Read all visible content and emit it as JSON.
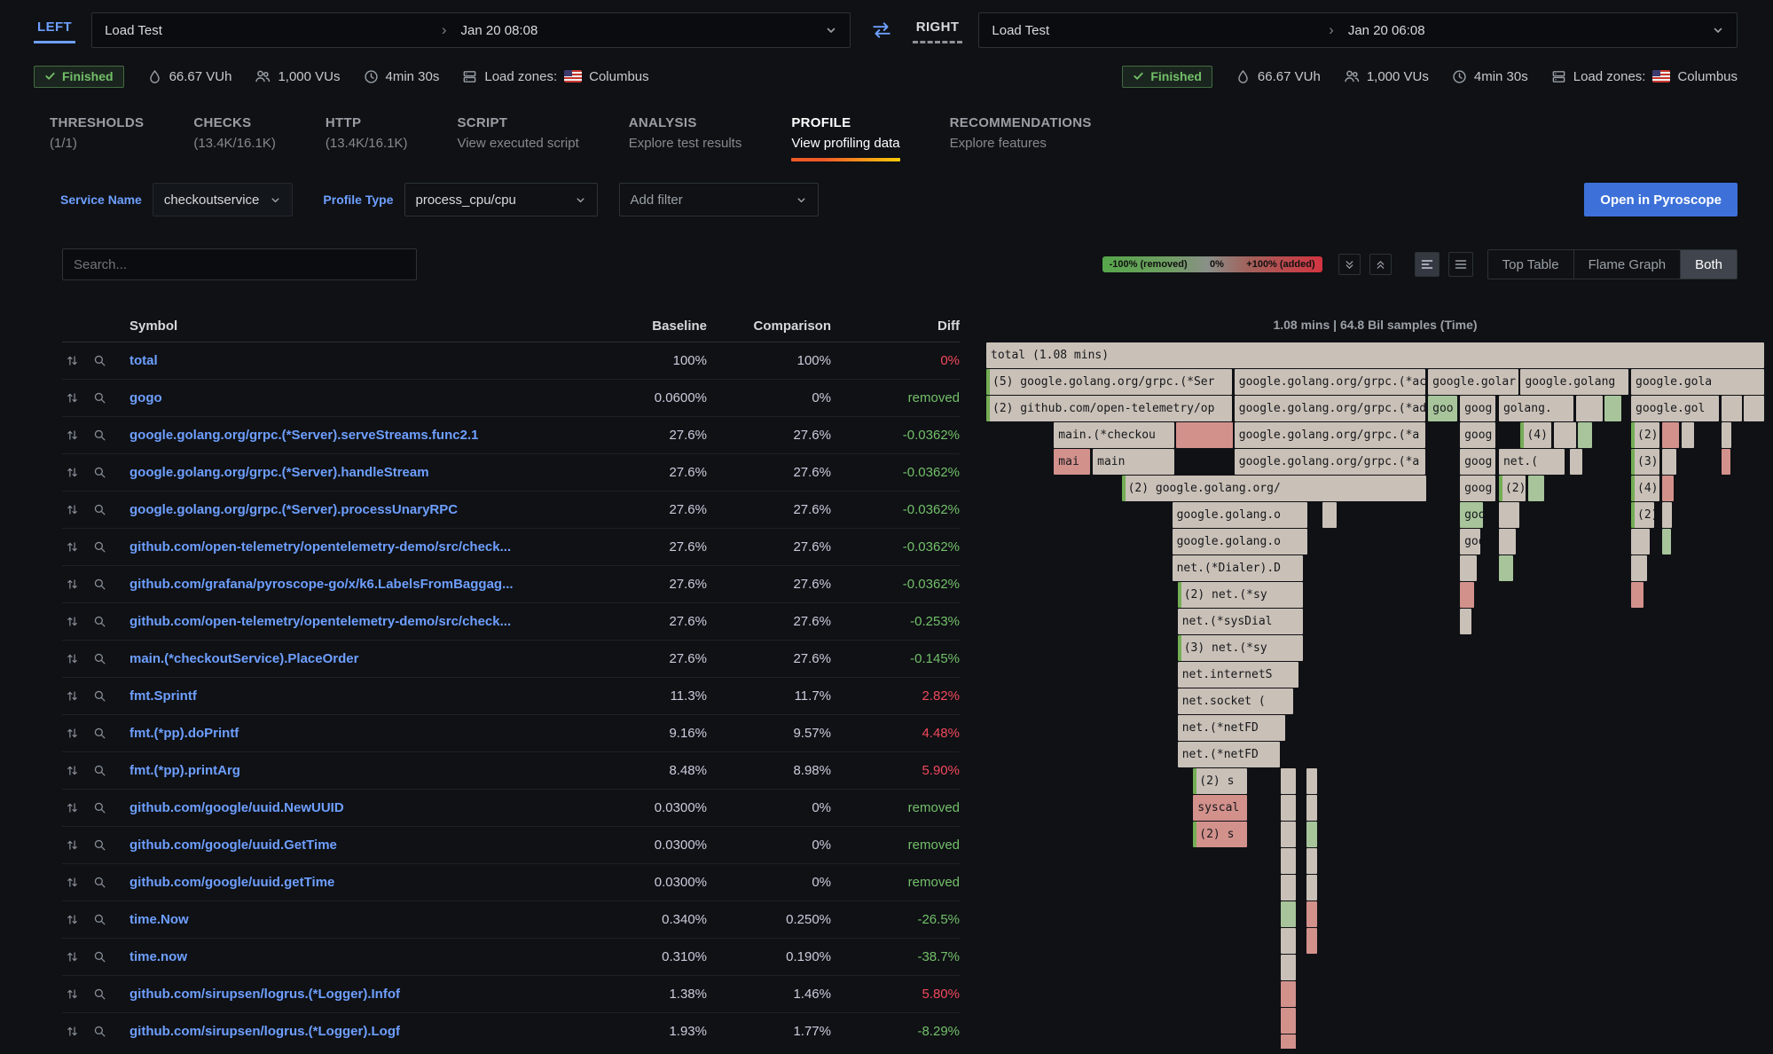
{
  "colors": {
    "accent_blue": "#6e9fff",
    "green": "#73bf69",
    "red": "#f2495c",
    "tab_indicator": "#f05a28",
    "primary_button": "#3d71d9"
  },
  "compare_bar": {
    "left_label": "LEFT",
    "left_test": "Load Test",
    "left_time": "Jan 20 08:08",
    "right_label": "RIGHT",
    "right_test": "Load Test",
    "right_time": "Jan 20 06:08"
  },
  "run_meta": {
    "left": {
      "status": "Finished",
      "vuh": "66.67 VUh",
      "vus": "1,000 VUs",
      "duration": "4min 30s",
      "load_zones_label": "Load zones:",
      "load_zone": "Columbus"
    },
    "right": {
      "status": "Finished",
      "vuh": "66.67 VUh",
      "vus": "1,000 VUs",
      "duration": "4min 30s",
      "load_zones_label": "Load zones:",
      "load_zone": "Columbus"
    }
  },
  "tabs": [
    {
      "label": "THRESHOLDS",
      "sub": "(1/1)",
      "active": false
    },
    {
      "label": "CHECKS",
      "sub": "(13.4K/16.1K)",
      "active": false
    },
    {
      "label": "HTTP",
      "sub": "(13.4K/16.1K)",
      "active": false
    },
    {
      "label": "SCRIPT",
      "sub": "View executed script",
      "active": false
    },
    {
      "label": "ANALYSIS",
      "sub": "Explore test results",
      "active": false
    },
    {
      "label": "PROFILE",
      "sub": "View profiling data",
      "active": true
    },
    {
      "label": "RECOMMENDATIONS",
      "sub": "Explore features",
      "active": false
    }
  ],
  "filters": {
    "service_name_label": "Service Name",
    "service_name_value": "checkoutservice",
    "profile_type_label": "Profile Type",
    "profile_type_value": "process_cpu/cpu",
    "add_filter_placeholder": "Add filter",
    "open_pyroscope_label": "Open in Pyroscope"
  },
  "toolbar": {
    "search_placeholder": "Search...",
    "legend": {
      "left": "-100% (removed)",
      "mid": "0%",
      "right": "+100% (added)"
    },
    "view_modes": [
      {
        "label": "Top Table",
        "active": false
      },
      {
        "label": "Flame Graph",
        "active": false
      },
      {
        "label": "Both",
        "active": true
      }
    ]
  },
  "table": {
    "headers": [
      "Symbol",
      "Baseline",
      "Comparison",
      "Diff"
    ],
    "rows": [
      {
        "symbol": "total",
        "baseline": "100%",
        "comparison": "100%",
        "diff": "0%",
        "dir": "up"
      },
      {
        "symbol": "gogo",
        "baseline": "0.0600%",
        "comparison": "0%",
        "diff": "removed",
        "dir": "down"
      },
      {
        "symbol": "google.golang.org/grpc.(*Server).serveStreams.func2.1",
        "baseline": "27.6%",
        "comparison": "27.6%",
        "diff": "-0.0362%",
        "dir": "down"
      },
      {
        "symbol": "google.golang.org/grpc.(*Server).handleStream",
        "baseline": "27.6%",
        "comparison": "27.6%",
        "diff": "-0.0362%",
        "dir": "down"
      },
      {
        "symbol": "google.golang.org/grpc.(*Server).processUnaryRPC",
        "baseline": "27.6%",
        "comparison": "27.6%",
        "diff": "-0.0362%",
        "dir": "down"
      },
      {
        "symbol": "github.com/open-telemetry/opentelemetry-demo/src/check...",
        "baseline": "27.6%",
        "comparison": "27.6%",
        "diff": "-0.0362%",
        "dir": "down"
      },
      {
        "symbol": "github.com/grafana/pyroscope-go/x/k6.LabelsFromBaggag...",
        "baseline": "27.6%",
        "comparison": "27.6%",
        "diff": "-0.0362%",
        "dir": "down"
      },
      {
        "symbol": "github.com/open-telemetry/opentelemetry-demo/src/check...",
        "baseline": "27.6%",
        "comparison": "27.6%",
        "diff": "-0.253%",
        "dir": "down"
      },
      {
        "symbol": "main.(*checkoutService).PlaceOrder",
        "baseline": "27.6%",
        "comparison": "27.6%",
        "diff": "-0.145%",
        "dir": "down"
      },
      {
        "symbol": "fmt.Sprintf",
        "baseline": "11.3%",
        "comparison": "11.7%",
        "diff": "2.82%",
        "dir": "up"
      },
      {
        "symbol": "fmt.(*pp).doPrintf",
        "baseline": "9.16%",
        "comparison": "9.57%",
        "diff": "4.48%",
        "dir": "up"
      },
      {
        "symbol": "fmt.(*pp).printArg",
        "baseline": "8.48%",
        "comparison": "8.98%",
        "diff": "5.90%",
        "dir": "up"
      },
      {
        "symbol": "github.com/google/uuid.NewUUID",
        "baseline": "0.0300%",
        "comparison": "0%",
        "diff": "removed",
        "dir": "down"
      },
      {
        "symbol": "github.com/google/uuid.GetTime",
        "baseline": "0.0300%",
        "comparison": "0%",
        "diff": "removed",
        "dir": "down"
      },
      {
        "symbol": "github.com/google/uuid.getTime",
        "baseline": "0.0300%",
        "comparison": "0%",
        "diff": "removed",
        "dir": "down"
      },
      {
        "symbol": "time.Now",
        "baseline": "0.340%",
        "comparison": "0.250%",
        "diff": "-26.5%",
        "dir": "down"
      },
      {
        "symbol": "time.now",
        "baseline": "0.310%",
        "comparison": "0.190%",
        "diff": "-38.7%",
        "dir": "down"
      },
      {
        "symbol": "github.com/sirupsen/logrus.(*Logger).Infof",
        "baseline": "1.38%",
        "comparison": "1.46%",
        "diff": "5.80%",
        "dir": "up"
      },
      {
        "symbol": "github.com/sirupsen/logrus.(*Logger).Logf",
        "baseline": "1.93%",
        "comparison": "1.77%",
        "diff": "-8.29%",
        "dir": "down"
      }
    ]
  },
  "flame": {
    "header": "1.08 mins | 64.8 Bil samples (Time)",
    "rows": [
      [
        [
          0,
          100,
          "n",
          "total (1.08 mins)"
        ]
      ],
      [
        [
          0,
          31.6,
          "n",
          "(5) google.golang.org/grpc.(*Ser",
          "g"
        ],
        [
          31.9,
          24.6,
          "n",
          "google.golang.org/grpc.(*ac"
        ],
        [
          56.8,
          11.6,
          "n",
          "google.golar"
        ],
        [
          68.7,
          13.9,
          "n",
          "google.golang"
        ],
        [
          82.9,
          17.1,
          "n",
          "google.gola"
        ]
      ],
      [
        [
          0,
          31.6,
          "n",
          "(2) github.com/open-telemetry/op",
          "g"
        ],
        [
          31.9,
          24.6,
          "n",
          "google.golang.org/grpc.(*ad"
        ],
        [
          56.8,
          3.7,
          "g",
          "goo"
        ],
        [
          60.9,
          4.6,
          "n",
          "goog"
        ],
        [
          65.9,
          9.6,
          "n",
          "golang."
        ],
        [
          75.8,
          3.4,
          "n",
          ""
        ],
        [
          79.5,
          2.2,
          "g",
          ""
        ],
        [
          82.9,
          11.3,
          "n",
          "google.gol"
        ],
        [
          94.5,
          2.6,
          "n",
          ""
        ],
        [
          97.4,
          2.6,
          "n",
          ""
        ]
      ],
      [
        [
          8.7,
          15.5,
          "n",
          "main.(*checkou"
        ],
        [
          24.4,
          7.3,
          "r",
          ""
        ],
        [
          31.9,
          24.6,
          "n",
          "google.golang.org/grpc.(*a"
        ],
        [
          60.9,
          4.6,
          "n",
          "goog"
        ],
        [
          68.7,
          3.9,
          "n",
          "(4)",
          "g"
        ],
        [
          73,
          2.8,
          "n",
          ""
        ],
        [
          76.1,
          1.8,
          "g",
          ""
        ],
        [
          82.9,
          3.6,
          "n",
          "(2)",
          "g"
        ],
        [
          86.9,
          2.2,
          "r",
          ""
        ],
        [
          89.4,
          1.6,
          "n",
          ""
        ],
        [
          94.5,
          1.3,
          "n",
          ""
        ]
      ],
      [
        [
          8.7,
          4.6,
          "r",
          "mai"
        ],
        [
          13.7,
          10.5,
          "n",
          "main"
        ],
        [
          31.9,
          24.6,
          "n",
          "google.golang.org/grpc.(*a"
        ],
        [
          60.9,
          4.6,
          "n",
          "goog"
        ],
        [
          65.9,
          8.5,
          "n",
          "net.("
        ],
        [
          75,
          1.6,
          "n",
          ""
        ],
        [
          82.9,
          3.6,
          "n",
          "(3)",
          "g"
        ],
        [
          86.9,
          1.8,
          "n",
          ""
        ],
        [
          94.5,
          1,
          "r",
          ""
        ]
      ],
      [
        [
          17.4,
          39.1,
          "n",
          "(2) google.golang.org/",
          "g"
        ],
        [
          60.9,
          4.6,
          "n",
          "goog"
        ],
        [
          65.9,
          3.4,
          "n",
          "(2)",
          "g"
        ],
        [
          69.7,
          2,
          "g",
          ""
        ],
        [
          82.9,
          3.6,
          "n",
          "(4)",
          "g"
        ],
        [
          86.9,
          1.5,
          "r",
          ""
        ]
      ],
      [
        [
          23.9,
          17.4,
          "n",
          "google.golang.o"
        ],
        [
          43.2,
          1.8,
          "n",
          ""
        ],
        [
          60.9,
          2.9,
          "g",
          "goo"
        ],
        [
          65.9,
          2.6,
          "n",
          ""
        ],
        [
          82.9,
          3,
          "n",
          "(2)",
          "g"
        ],
        [
          86.9,
          1.2,
          "n",
          ""
        ]
      ],
      [
        [
          23.9,
          17.4,
          "n",
          "google.golang.o"
        ],
        [
          60.9,
          2.6,
          "n",
          "goo"
        ],
        [
          65.9,
          2.2,
          "n",
          ""
        ],
        [
          82.9,
          2.4,
          "n",
          ""
        ],
        [
          86.9,
          1,
          "g",
          ""
        ]
      ],
      [
        [
          23.9,
          16.8,
          "n",
          "net.(*Dialer).D"
        ],
        [
          60.9,
          2.2,
          "n",
          ""
        ],
        [
          65.9,
          1.8,
          "g",
          ""
        ],
        [
          82.9,
          2,
          "n",
          ""
        ]
      ],
      [
        [
          24.6,
          16.1,
          "n",
          "(2) net.(*sy",
          "g"
        ],
        [
          60.9,
          1.8,
          "r",
          ""
        ],
        [
          82.9,
          1.6,
          "r",
          ""
        ]
      ],
      [
        [
          24.6,
          16.1,
          "n",
          "net.(*sysDial"
        ],
        [
          60.9,
          1.5,
          "n",
          ""
        ]
      ],
      [
        [
          24.6,
          16.1,
          "n",
          "(3) net.(*sy",
          "g"
        ]
      ],
      [
        [
          24.6,
          15.5,
          "n",
          "net.internetS"
        ]
      ],
      [
        [
          24.6,
          14.9,
          "n",
          "net.socket ("
        ]
      ],
      [
        [
          24.6,
          13.8,
          "n",
          "net.(*netFD"
        ]
      ],
      [
        [
          24.6,
          13.1,
          "n",
          "net.(*netFD"
        ]
      ],
      [
        [
          26.6,
          6.9,
          "n",
          "(2) s",
          "g"
        ],
        [
          37.9,
          1.9,
          "n",
          ""
        ],
        [
          41.2,
          1.3,
          "n",
          ""
        ]
      ],
      [
        [
          26.6,
          6.9,
          "r",
          "syscal"
        ],
        [
          37.9,
          1.9,
          "n",
          ""
        ],
        [
          41.2,
          1.3,
          "n",
          ""
        ]
      ],
      [
        [
          26.6,
          6.9,
          "r",
          "(2) s",
          "g"
        ],
        [
          37.9,
          1.9,
          "n",
          ""
        ],
        [
          41.2,
          1.3,
          "g",
          ""
        ]
      ],
      [
        [
          37.9,
          1.9,
          "n",
          ""
        ],
        [
          41.2,
          1.3,
          "n",
          ""
        ]
      ],
      [
        [
          37.9,
          1.9,
          "n",
          ""
        ],
        [
          41.2,
          1.3,
          "n",
          ""
        ]
      ],
      [
        [
          37.9,
          1.9,
          "g",
          ""
        ],
        [
          41.2,
          1.3,
          "r",
          ""
        ]
      ],
      [
        [
          37.9,
          1.9,
          "n",
          ""
        ],
        [
          41.2,
          1.3,
          "r",
          ""
        ]
      ],
      [
        [
          37.9,
          1.9,
          "n",
          ""
        ]
      ],
      [
        [
          37.9,
          1.9,
          "r",
          ""
        ]
      ],
      [
        [
          37.9,
          1.9,
          "r",
          ""
        ]
      ],
      [
        [
          37.9,
          1.9,
          "r",
          ""
        ]
      ]
    ]
  }
}
